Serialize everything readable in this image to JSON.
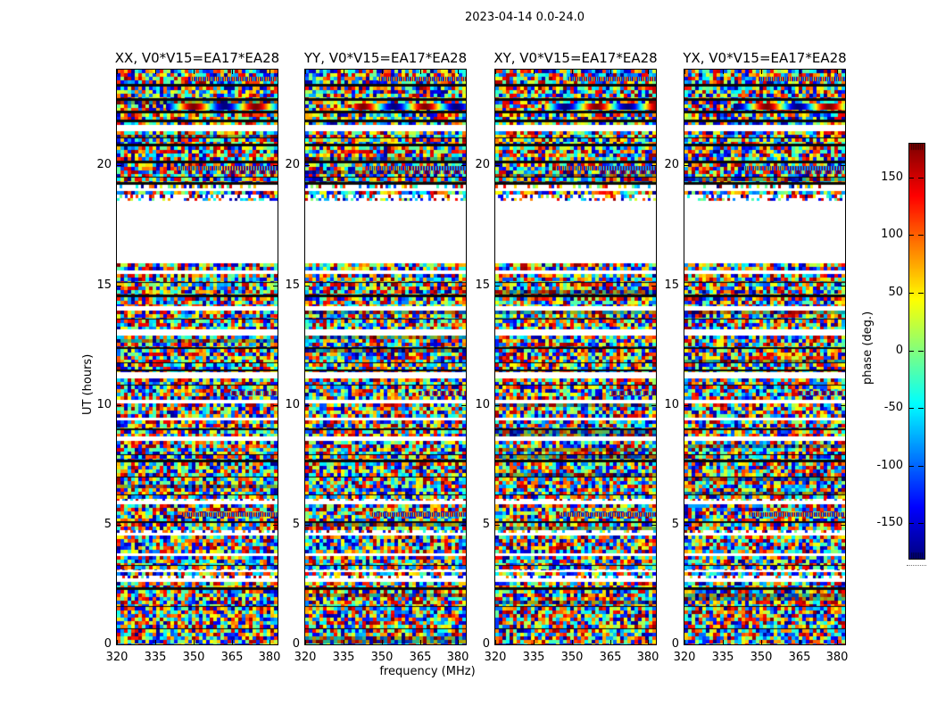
{
  "figure": {
    "background": "#ffffff",
    "text_color": "#000000"
  },
  "chart_data": {
    "type": "heatmap",
    "suptitle": "2023-04-14 0.0-24.0",
    "panels": [
      {
        "id": "XX",
        "title": "XX, V0*V15=EA17*EA28"
      },
      {
        "id": "YY",
        "title": "YY, V0*V15=EA17*EA28"
      },
      {
        "id": "XY",
        "title": "XY, V0*V15=EA17*EA28"
      },
      {
        "id": "YX",
        "title": "YX, V0*V15=EA17*EA28"
      }
    ],
    "xlabel": "frequency (MHz)",
    "ylabel": "UT (hours)",
    "x_ticks": [
      320,
      335,
      350,
      365,
      380
    ],
    "x_range": [
      320,
      383
    ],
    "y_ticks": [
      0,
      5,
      10,
      15,
      20
    ],
    "y_range": [
      0,
      24
    ],
    "values_note": "uniform random visibility phase noise (-180..180 deg) vs time and frequency; thin black horizontal lines are scan boundaries; white horizontal bands are periods with no data",
    "no_data_gaps_ut_hours": [
      [
        15.91,
        18.52
      ],
      [
        21.43,
        21.69
      ],
      [
        18.95,
        19.05
      ],
      [
        15.47,
        15.62
      ],
      [
        13.94,
        14.13
      ],
      [
        12.9,
        13.16
      ],
      [
        11.11,
        11.37
      ],
      [
        10.06,
        10.21
      ],
      [
        9.36,
        9.47
      ],
      [
        8.5,
        8.68
      ],
      [
        5.85,
        6.0
      ],
      [
        4.55,
        4.66
      ],
      [
        3.69,
        3.8
      ],
      [
        3.02,
        3.09
      ],
      [
        2.61,
        2.76
      ]
    ],
    "scan_boundaries_ut_hours": [
      23.4,
      22.8,
      22.3,
      21.9,
      20.9,
      20.2,
      19.3,
      14.6,
      10.0,
      9.3,
      7.7,
      2.4
    ],
    "colorbar": {
      "label": "phase (deg.)",
      "ticks": [
        150,
        100,
        50,
        0,
        -50,
        -100,
        -150
      ],
      "range": [
        -180,
        180
      ],
      "colormap": "jet"
    }
  }
}
